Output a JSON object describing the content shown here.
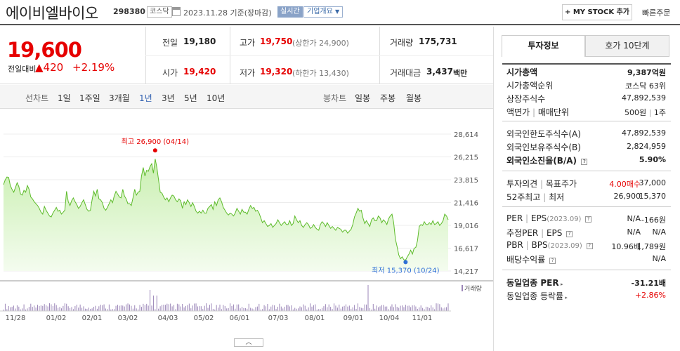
{
  "header": {
    "stock_name": "에이비엘바이오",
    "stock_code": "298380",
    "market": "코스닥",
    "date_text": "2023.11.28 기준(장마감)",
    "realtime_label": "실시간",
    "company_info_label": "기업개요",
    "my_stock_label": "+ MY STOCK 추가",
    "quick_order_label": "빠른주문"
  },
  "summary": {
    "price": "19,600",
    "change_label": "전일대비",
    "change_value": "▲420",
    "change_pct": "+2.19%",
    "prev_close_label": "전일",
    "prev_close": "19,180",
    "high_label": "고가",
    "high": "19,750",
    "upper_limit": "(상한가 24,900)",
    "volume_label": "거래량",
    "volume": "175,731",
    "open_label": "시가",
    "open": "19,420",
    "low_label": "저가",
    "low": "19,320",
    "lower_limit": "(하한가 13,430)",
    "amount_label": "거래대금",
    "amount": "3,437",
    "amount_unit": "백만"
  },
  "tabs": {
    "line_label": "선차트",
    "line_periods": [
      "1일",
      "1주일",
      "3개월",
      "1년",
      "3년",
      "5년",
      "10년"
    ],
    "active_period": "1년",
    "candle_label": "봉차트",
    "candle_periods": [
      "일봉",
      "주봉",
      "월봉"
    ]
  },
  "chart_data": {
    "type": "area",
    "title": "",
    "y_ticks": [
      "28,614",
      "26,215",
      "23,815",
      "21,416",
      "19,016",
      "16,617",
      "14,217"
    ],
    "ylim": [
      14217,
      28614
    ],
    "x_ticks": [
      "11/28",
      "01/02",
      "02/01",
      "03/02",
      "04/03",
      "05/02",
      "06/01",
      "07/03",
      "08/01",
      "09/01",
      "10/04",
      "11/01"
    ],
    "max_annotation": "최고 26,900 (04/14)",
    "min_annotation": "최저 15,370 (10/24)",
    "volume_label": "거래량",
    "prices": [
      23300,
      23800,
      24100,
      24050,
      23200,
      22800,
      22500,
      23000,
      23500,
      23100,
      22300,
      22200,
      22700,
      22500,
      23200,
      22800,
      22000,
      21800,
      21500,
      21300,
      21100,
      20800,
      20400,
      20200,
      21000,
      20600,
      20300,
      20000,
      19900,
      20300,
      20600,
      20900,
      20500,
      20600,
      20200,
      20400,
      20600,
      22600,
      21500,
      21100,
      21600,
      21900,
      21500,
      21200,
      20800,
      21000,
      21400,
      21700,
      21200,
      20700,
      20500,
      20600,
      21700,
      22600,
      22100,
      22800,
      21800,
      21700,
      21400,
      20800,
      20600,
      20900,
      21300,
      21700,
      21400,
      22100,
      22600,
      22300,
      22000,
      21900,
      22800,
      22100,
      21800,
      21300,
      21300,
      21100,
      21900,
      22800,
      22200,
      22500,
      22600,
      24200,
      25100,
      24200,
      24800,
      24700,
      25200,
      25500,
      24500,
      26000,
      25100,
      23800,
      22500,
      22400,
      22000,
      21700,
      21900,
      21500,
      21900,
      22200,
      22100,
      21700,
      21500,
      21800,
      21600,
      20800,
      21500,
      21200,
      21700,
      21400,
      21000,
      21400,
      21000,
      20500,
      20300,
      20500,
      20300,
      20600,
      20300,
      20300,
      20800,
      21000,
      21200,
      20700,
      21500,
      21100,
      21700,
      21900,
      21500,
      20900,
      20600,
      20300,
      20100,
      20300,
      20200,
      20000,
      20300,
      20800,
      20500,
      20200,
      20700,
      20400,
      20400,
      20200,
      20700,
      21100,
      20800,
      20900,
      20500,
      20600,
      20300,
      19800,
      19300,
      19500,
      19200,
      18900,
      19000,
      19200,
      18800,
      19000,
      19200,
      19600,
      19300,
      19000,
      19200,
      19400,
      19100,
      19100,
      19500,
      19000,
      19200,
      20000,
      19600,
      19300,
      19500,
      19000,
      18800,
      19100,
      19300,
      19100,
      18700,
      18800,
      19100,
      18800,
      18600,
      18500,
      19100,
      19400,
      19200,
      18900,
      19300,
      19000,
      18700,
      18900,
      18700,
      18500,
      18800,
      18700,
      18600,
      18300,
      18500,
      18500,
      18200,
      18400,
      18600,
      19100,
      19900,
      20300,
      20800,
      20500,
      20600,
      19800,
      19200,
      19500,
      19200,
      18900,
      19600,
      19800,
      19500,
      19500,
      20000,
      19800,
      19300,
      19600,
      19400,
      19100,
      19700,
      20000,
      20200,
      19300,
      17600,
      16800,
      15900,
      15500,
      15700,
      15400,
      15370,
      15700,
      16000,
      16400,
      16000,
      16600,
      16700,
      17400,
      18900,
      19100,
      19000,
      19400,
      19100,
      19100,
      19300,
      19100,
      19500,
      19100,
      19200,
      19400,
      19000,
      19200,
      19500,
      20200,
      20000,
      19600
    ]
  },
  "side": {
    "tab_active": "투자정보",
    "tab_inactive": "호가 10단계",
    "market_cap_label": "시가총액",
    "market_cap": "9,387억원",
    "cap_rank_label": "시가총액순위",
    "cap_rank": "코스닥 63위",
    "shares_label": "상장주식수",
    "shares": "47,892,539",
    "par_label_a": "액면가",
    "par_label_b": "매매단위",
    "par_value": "500원",
    "par_unit": "1주",
    "foreign_limit_label": "외국인한도주식수(A)",
    "foreign_limit": "47,892,539",
    "foreign_hold_label": "외국인보유주식수(B)",
    "foreign_hold": "2,824,959",
    "foreign_ratio_label": "외국인소진율(B/A)",
    "foreign_ratio": "5.90%",
    "opinion_label_a": "투자의견",
    "opinion_label_b": "목표주가",
    "opinion": "4.00매수",
    "target": "37,000",
    "week52_label_a": "52주최고",
    "week52_label_b": "최저",
    "week52_high": "26,900",
    "week52_low": "15,370",
    "per_label": "PER",
    "eps_label": "EPS",
    "eps_year": "(2023.09)",
    "per": "N/A",
    "eps": "-166원",
    "est_per_label": "추정PER",
    "est_eps_label": "EPS",
    "est_per": "N/A",
    "est_eps": "N/A",
    "pbr_label": "PBR",
    "bps_label": "BPS",
    "bps_year": "(2023.09)",
    "pbr": "10.96배",
    "bps": "1,789원",
    "div_label": "배당수익률",
    "div": "N/A",
    "industry_per_label": "동일업종 PER",
    "industry_per": "-31.21배",
    "industry_rate_label": "동일업종 등락률",
    "industry_rate": "+2.86%"
  }
}
